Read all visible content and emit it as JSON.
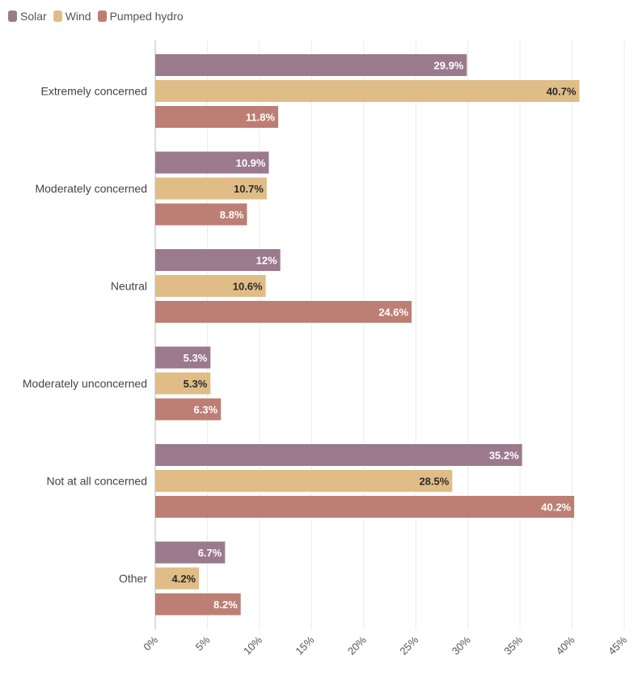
{
  "chart_data": {
    "type": "bar",
    "orientation": "horizontal",
    "categories": [
      "Extremely concerned",
      "Moderately concerned",
      "Neutral",
      "Moderately unconcerned",
      "Not at all concerned",
      "Other"
    ],
    "series": [
      {
        "name": "Solar",
        "values": [
          29.9,
          10.9,
          12,
          5.3,
          35.2,
          6.7
        ],
        "labels": [
          "29.9%",
          "10.9%",
          "12%",
          "5.3%",
          "35.2%",
          "6.7%"
        ],
        "color": "#9b7a8e",
        "label_color": "#ffffff"
      },
      {
        "name": "Wind",
        "values": [
          40.7,
          10.7,
          10.6,
          5.3,
          28.5,
          4.2
        ],
        "labels": [
          "40.7%",
          "10.7%",
          "10.6%",
          "5.3%",
          "28.5%",
          "4.2%"
        ],
        "color": "#e0bd86",
        "label_color": "#2a2a2a"
      },
      {
        "name": "Pumped hydro",
        "values": [
          11.8,
          8.8,
          24.6,
          6.3,
          40.2,
          8.2
        ],
        "labels": [
          "11.8%",
          "8.8%",
          "24.6%",
          "6.3%",
          "40.2%",
          "8.2%"
        ],
        "color": "#bd7e73",
        "label_color": "#ffffff"
      }
    ],
    "xlim": [
      0,
      45
    ],
    "xticks": [
      0,
      5,
      10,
      15,
      20,
      25,
      30,
      35,
      40,
      45
    ],
    "xtick_labels": [
      "0%",
      "5%",
      "10%",
      "15%",
      "20%",
      "25%",
      "30%",
      "35%",
      "40%",
      "45%"
    ],
    "grid": true,
    "legend_position": "top-left"
  }
}
